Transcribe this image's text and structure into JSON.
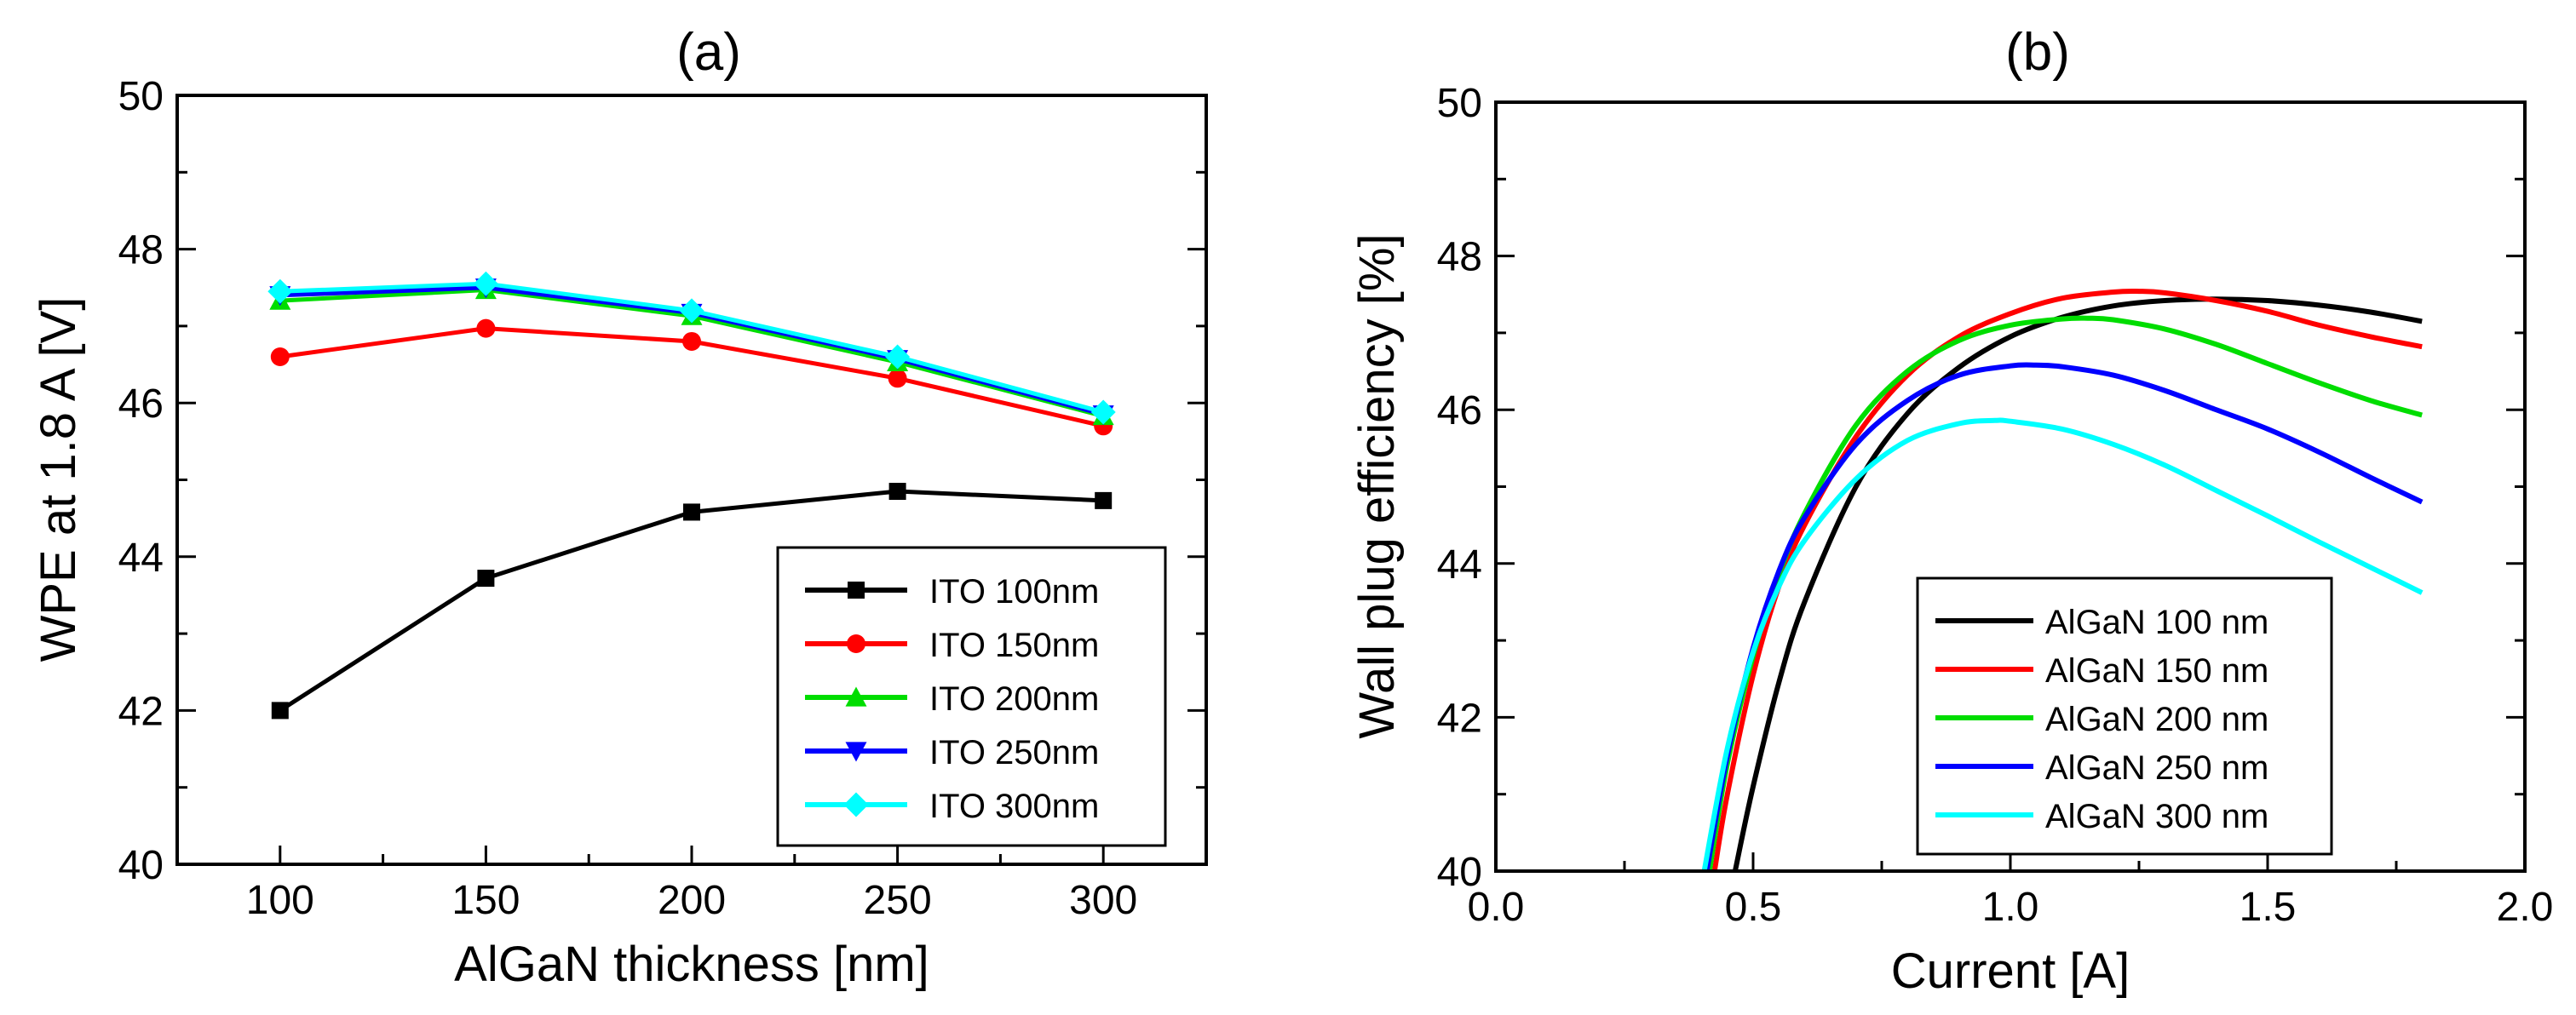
{
  "chart_data": [
    {
      "type": "line",
      "title": "(a)",
      "xlabel": "AlGaN thickness [nm]",
      "ylabel": "WPE at 1.8 A [V]",
      "xlim": [
        75,
        325
      ],
      "ylim": [
        40,
        50
      ],
      "x_major_ticks": [
        100,
        150,
        200,
        250,
        300
      ],
      "x_minor_ticks": [
        125,
        175,
        225,
        275
      ],
      "y_major_ticks": [
        40,
        42,
        44,
        46,
        48,
        50
      ],
      "y_minor_ticks": [
        41,
        43,
        45,
        47,
        49
      ],
      "x_tick_labels": [
        "100",
        "150",
        "200",
        "250",
        "300"
      ],
      "y_tick_labels": [
        "40",
        "42",
        "44",
        "46",
        "48",
        "50"
      ],
      "legend_position": "bottom-right",
      "series": [
        {
          "name": "ITO 100nm",
          "color": "#000000",
          "marker": "square",
          "x": [
            100,
            150,
            200,
            250,
            300
          ],
          "y": [
            42.0,
            43.72,
            44.58,
            44.85,
            44.73
          ]
        },
        {
          "name": "ITO 150nm",
          "color": "#ff0000",
          "marker": "circle",
          "x": [
            100,
            150,
            200,
            250,
            300
          ],
          "y": [
            46.6,
            46.97,
            46.8,
            46.32,
            45.7
          ]
        },
        {
          "name": "ITO 200nm",
          "color": "#00dd00",
          "marker": "triangle-up",
          "x": [
            100,
            150,
            200,
            250,
            300
          ],
          "y": [
            47.33,
            47.47,
            47.13,
            46.53,
            45.83
          ]
        },
        {
          "name": "ITO 250nm",
          "color": "#0000ff",
          "marker": "triangle-down",
          "x": [
            100,
            150,
            200,
            250,
            300
          ],
          "y": [
            47.4,
            47.5,
            47.17,
            46.57,
            45.85
          ]
        },
        {
          "name": "ITO 300nm",
          "color": "#00ffff",
          "marker": "diamond",
          "x": [
            100,
            150,
            200,
            250,
            300
          ],
          "y": [
            47.45,
            47.55,
            47.2,
            46.6,
            45.88
          ]
        }
      ]
    },
    {
      "type": "line",
      "title": "(b)",
      "xlabel": "Current [A]",
      "ylabel": "Wall plug efficiency [%]",
      "xlim": [
        0.0,
        2.0
      ],
      "ylim": [
        40,
        50
      ],
      "x_major_ticks": [
        0.0,
        0.5,
        1.0,
        1.5,
        2.0
      ],
      "x_minor_ticks": [
        0.25,
        0.75,
        1.25,
        1.75
      ],
      "y_major_ticks": [
        40,
        42,
        44,
        46,
        48,
        50
      ],
      "y_minor_ticks": [
        41,
        43,
        45,
        47,
        49
      ],
      "x_tick_labels": [
        "0.0",
        "0.5",
        "1.0",
        "1.5",
        "2.0"
      ],
      "y_tick_labels": [
        "40",
        "42",
        "44",
        "46",
        "48",
        "50"
      ],
      "legend_position": "bottom-center",
      "series": [
        {
          "name": "AlGaN 100 nm",
          "color": "#000000",
          "x": [
            0.465,
            0.5,
            0.55,
            0.6,
            0.7,
            0.8,
            0.9,
            1.0,
            1.1,
            1.2,
            1.3,
            1.4,
            1.5,
            1.6,
            1.7,
            1.8
          ],
          "y": [
            40.0,
            41.1,
            42.45,
            43.5,
            45.0,
            45.95,
            46.55,
            46.95,
            47.2,
            47.35,
            47.42,
            47.44,
            47.42,
            47.36,
            47.27,
            47.15
          ]
        },
        {
          "name": "AlGaN 150 nm",
          "color": "#ff0000",
          "x": [
            0.425,
            0.45,
            0.5,
            0.55,
            0.6,
            0.7,
            0.8,
            0.9,
            1.0,
            1.1,
            1.2,
            1.25,
            1.3,
            1.4,
            1.5,
            1.6,
            1.7,
            1.8
          ],
          "y": [
            40.0,
            41.0,
            42.55,
            43.7,
            44.5,
            45.65,
            46.45,
            46.95,
            47.25,
            47.45,
            47.53,
            47.54,
            47.52,
            47.42,
            47.28,
            47.1,
            46.95,
            46.82
          ]
        },
        {
          "name": "AlGaN 200 nm",
          "color": "#00dd00",
          "x": [
            0.415,
            0.45,
            0.5,
            0.55,
            0.6,
            0.7,
            0.8,
            0.9,
            1.0,
            1.1,
            1.15,
            1.2,
            1.3,
            1.4,
            1.5,
            1.6,
            1.7,
            1.8
          ],
          "y": [
            40.0,
            41.4,
            42.8,
            43.85,
            44.65,
            45.8,
            46.5,
            46.9,
            47.1,
            47.18,
            47.19,
            47.17,
            47.05,
            46.85,
            46.6,
            46.35,
            46.12,
            45.93
          ]
        },
        {
          "name": "AlGaN 250 nm",
          "color": "#0000ff",
          "x": [
            0.41,
            0.45,
            0.5,
            0.55,
            0.6,
            0.7,
            0.8,
            0.9,
            1.0,
            1.05,
            1.1,
            1.2,
            1.3,
            1.4,
            1.5,
            1.6,
            1.7,
            1.8
          ],
          "y": [
            40.0,
            41.5,
            42.9,
            43.9,
            44.6,
            45.55,
            46.12,
            46.45,
            46.57,
            46.58,
            46.56,
            46.45,
            46.25,
            46.0,
            45.75,
            45.45,
            45.12,
            44.8
          ]
        },
        {
          "name": "AlGaN 300 nm",
          "color": "#00ffff",
          "x": [
            0.405,
            0.45,
            0.5,
            0.55,
            0.6,
            0.7,
            0.8,
            0.9,
            0.97,
            1.0,
            1.1,
            1.2,
            1.3,
            1.4,
            1.5,
            1.6,
            1.7,
            1.8
          ],
          "y": [
            40.0,
            41.6,
            42.85,
            43.7,
            44.3,
            45.1,
            45.6,
            45.82,
            45.86,
            45.85,
            45.75,
            45.55,
            45.28,
            44.95,
            44.62,
            44.28,
            43.95,
            43.62
          ]
        }
      ]
    }
  ]
}
